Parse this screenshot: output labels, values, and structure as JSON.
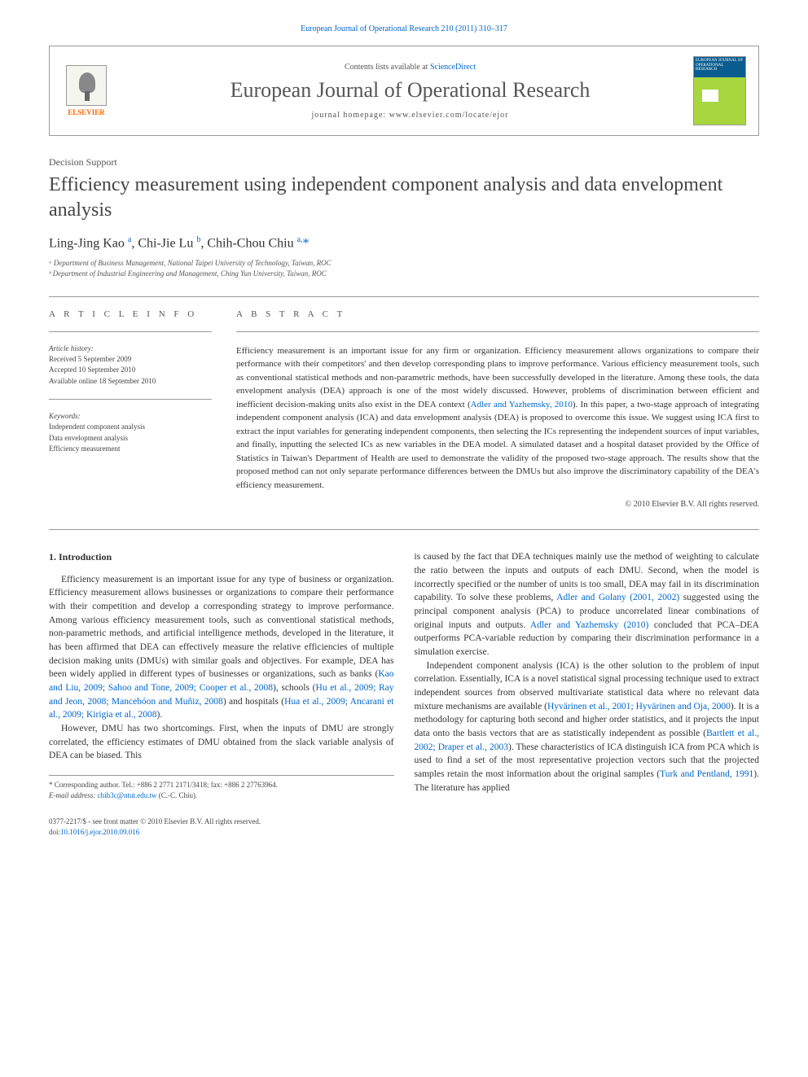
{
  "header": {
    "citation": "European Journal of Operational Research 210 (2011) 310–317",
    "contents_prefix": "Contents lists available at ",
    "contents_link": "ScienceDirect",
    "journal_name": "European Journal of Operational Research",
    "homepage_prefix": "journal homepage: ",
    "homepage_url": "www.elsevier.com/locate/ejor",
    "elsevier_label": "ELSEVIER",
    "cover_text": "EUROPEAN JOURNAL OF OPERATIONAL RESEARCH"
  },
  "article": {
    "section": "Decision Support",
    "title": "Efficiency measurement using independent component analysis and data envelopment analysis",
    "authors_html": "Ling-Jing Kao <sup>a</sup>, Chi-Jie Lu <sup>b</sup>, Chih-Chou Chiu <sup>a,</sup><span class='corr'>*</span>",
    "affiliations": [
      "ᵃ Department of Business Management, National Taipei University of Technology, Taiwan, ROC",
      "ᵇ Department of Industrial Engineering and Management, Ching Yun University, Taiwan, ROC"
    ]
  },
  "info": {
    "heading": "A R T I C L E   I N F O",
    "history_label": "Article history:",
    "history_lines": "Received 5 September 2009\nAccepted 10 September 2010\nAvailable online 18 September 2010",
    "keywords_label": "Keywords:",
    "keywords_lines": "Independent component analysis\nData envelopment analysis\nEfficiency measurement"
  },
  "abstract": {
    "heading": "A B S T R A C T",
    "text_parts": [
      "Efficiency measurement is an important issue for any firm or organization. Efficiency measurement allows organizations to compare their performance with their competitors' and then develop corresponding plans to improve performance. Various efficiency measurement tools, such as conventional statistical methods and non-parametric methods, have been successfully developed in the literature. Among these tools, the data envelopment analysis (DEA) approach is one of the most widely discussed. However, problems of discrimination between efficient and inefficient decision-making units also exist in the DEA context (",
      "Adler and Yazhemsky, 2010",
      "). In this paper, a two-stage approach of integrating independent component analysis (ICA) and data envelopment analysis (DEA) is proposed to overcome this issue. We suggest using ICA first to extract the input variables for generating independent components, then selecting the ICs representing the independent sources of input variables, and finally, inputting the selected ICs as new variables in the DEA model. A simulated dataset and a hospital dataset provided by the Office of Statistics in Taiwan's Department of Health are used to demonstrate the validity of the proposed two-stage approach. The results show that the proposed method can not only separate performance differences between the DMUs but also improve the discriminatory capability of the DEA's efficiency measurement."
    ],
    "copyright": "© 2010 Elsevier B.V. All rights reserved."
  },
  "body": {
    "intro_heading": "1. Introduction",
    "col1_p1_parts": [
      "Efficiency measurement is an important issue for any type of business or organization. Efficiency measurement allows businesses or organizations to compare their performance with their competition and develop a corresponding strategy to improve performance. Among various efficiency measurement tools, such as conventional statistical methods, non-parametric methods, and artificial intelligence methods, developed in the literature, it has been affirmed that DEA can effectively measure the relative efficiencies of multiple decision making units (DMUs) with similar goals and objectives. For example, DEA has been widely applied in different types of businesses or organizations, such as banks (",
      "Kao and Liu, 2009; Sahoo and Tone, 2009; Cooper et al., 2008",
      "), schools (",
      "Hu et al., 2009; Ray and Jeon, 2008; Mancebóon and Muñiz, 2008",
      ") and hospitals (",
      "Hua et al., 2009; Ancarani et al., 2009; Kirigia et al., 2008",
      ")."
    ],
    "col1_p2": "However, DMU has two shortcomings. First, when the inputs of DMU are strongly correlated, the efficiency estimates of DMU obtained from the slack variable analysis of DEA can be biased. This",
    "col2_p1_parts": [
      "is caused by the fact that DEA techniques mainly use the method of weighting to calculate the ratio between the inputs and outputs of each DMU. Second, when the model is incorrectly specified or the number of units is too small, DEA may fail in its discrimination capability. To solve these problems, ",
      "Adler and Golany (2001, 2002)",
      " suggested using the principal component analysis (PCA) to produce uncorrelated linear combinations of original inputs and outputs. ",
      "Adler and Yazhemsky (2010)",
      " concluded that PCA–DEA outperforms PCA-variable reduction by comparing their discrimination performance in a simulation exercise."
    ],
    "col2_p2_parts": [
      "Independent component analysis (ICA) is the other solution to the problem of input correlation. Essentially, ICA is a novel statistical signal processing technique used to extract independent sources from observed multivariate statistical data where no relevant data mixture mechanisms are available (",
      "Hyvärinen et al., 2001; Hyvärinen and Oja, 2000",
      "). It is a methodology for capturing both second and higher order statistics, and it projects the input data onto the basis vectors that are as statistically independent as possible (",
      "Bartlett et al., 2002; Draper et al., 2003",
      "). These characteristics of ICA distinguish ICA from PCA which is used to find a set of the most representative projection vectors such that the projected samples retain the most information about the original samples (",
      "Turk and Pentland, 1991",
      "). The literature has applied"
    ]
  },
  "corr_note": {
    "line1": "* Corresponding author. Tel.: +886 2 2771 2171/3418; fax: +886 2 27763964.",
    "line2_prefix": "E-mail address: ",
    "email": "chih3c@ntut.edu.tw",
    "line2_suffix": " (C.-C. Chiu)."
  },
  "footer": {
    "issn": "0377-2217/$ - see front matter © 2010 Elsevier B.V. All rights reserved.",
    "doi_prefix": "doi:",
    "doi": "10.1016/j.ejor.2010.09.016"
  },
  "colors": {
    "link": "#0066cc",
    "elsevier_orange": "#ff6600",
    "cover_green": "#a8d63e",
    "cover_blue": "#0a5c8f",
    "border": "#999999",
    "text": "#333333",
    "text_muted": "#555555"
  }
}
